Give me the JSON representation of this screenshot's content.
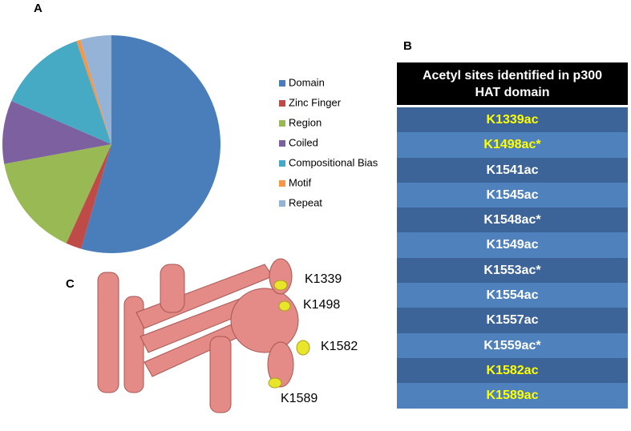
{
  "panels": {
    "a": "A",
    "b": "B",
    "c": "C"
  },
  "chart_data": {
    "type": "pie",
    "categories": [
      "Domain",
      "Zinc Finger",
      "Region",
      "Coiled",
      "Compositional Bias",
      "Motif",
      "Repeat"
    ],
    "values": [
      54.5,
      2.3,
      15.3,
      9.4,
      13.3,
      0.6,
      4.6
    ],
    "colors": [
      "#4a7ebb",
      "#be4b48",
      "#98b954",
      "#7d60a0",
      "#46aac5",
      "#f79646",
      "#95b3d7"
    ],
    "legend": "right"
  },
  "table": {
    "header": "Acetyl sites identified in p300 HAT domain",
    "rows": [
      {
        "text": "K1339ac",
        "color": "#ffff00"
      },
      {
        "text": "K1498ac*",
        "color": "#ffff00"
      },
      {
        "text": "K1541ac",
        "color": "#ffffff"
      },
      {
        "text": "K1545ac",
        "color": "#ffffff"
      },
      {
        "text": "K1548ac*",
        "color": "#ffffff"
      },
      {
        "text": "K1549ac",
        "color": "#ffffff"
      },
      {
        "text": "K1553ac*",
        "color": "#ffffff"
      },
      {
        "text": "K1554ac",
        "color": "#ffffff"
      },
      {
        "text": "K1557ac",
        "color": "#ffffff"
      },
      {
        "text": "K1559ac*",
        "color": "#ffffff"
      },
      {
        "text": "K1582ac",
        "color": "#ffff00"
      },
      {
        "text": "K1589ac",
        "color": "#ffff00"
      }
    ]
  },
  "structure": {
    "labels": [
      "K1339",
      "K1498",
      "K1582",
      "K1589"
    ]
  }
}
